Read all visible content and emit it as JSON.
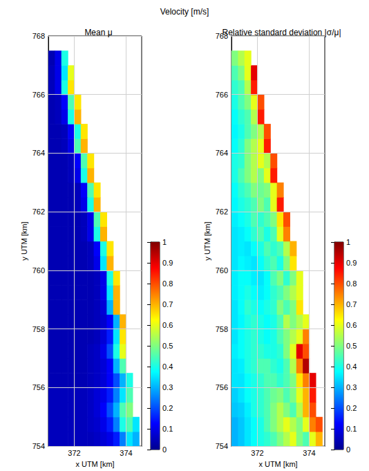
{
  "title": "Velocity [m/s]",
  "chart_data": [
    {
      "type": "heatmap",
      "title": "Mean μ",
      "x_label": "x UTM [km]",
      "y_label": "y UTM [km]",
      "xlim": [
        371,
        374.6
      ],
      "ylim": [
        754,
        768
      ],
      "xticks": [
        372,
        374
      ],
      "yticks": [
        754,
        756,
        758,
        760,
        762,
        764,
        766,
        768
      ],
      "grid": true,
      "color_range": [
        0,
        1
      ],
      "color_ticks": [
        0,
        0.1,
        0.2,
        0.3,
        0.4,
        0.5,
        0.6,
        0.7,
        0.8,
        0.9,
        1
      ],
      "x": [
        371.125,
        371.375,
        371.625,
        371.875,
        372.125,
        372.375,
        372.625,
        372.875,
        373.125,
        373.375,
        373.625,
        373.875,
        374.125,
        374.375
      ],
      "y": [
        754.25,
        754.75,
        755.25,
        755.75,
        756.25,
        756.75,
        757.25,
        757.75,
        758.25,
        758.75,
        759.25,
        759.75,
        760.25,
        760.75,
        761.25,
        761.75,
        762.25,
        762.75,
        763.25,
        763.75,
        764.25,
        764.75,
        765.25,
        765.75,
        766.25,
        766.75,
        767.25,
        767.75
      ],
      "values": [
        [
          0.05,
          0.05,
          0.05,
          0.05,
          0.05,
          0.05,
          0.05,
          0.06,
          0.08,
          0.1,
          0.15,
          0.25,
          0.35,
          0.3
        ],
        [
          0.05,
          0.05,
          0.05,
          0.05,
          0.05,
          0.05,
          0.06,
          0.07,
          0.1,
          0.15,
          0.25,
          0.4,
          0.45,
          0.35
        ],
        [
          0.05,
          0.05,
          0.05,
          0.05,
          0.05,
          0.05,
          0.06,
          0.08,
          0.12,
          0.2,
          0.3,
          0.45,
          0.5,
          null
        ],
        [
          0.05,
          0.05,
          0.05,
          0.05,
          0.05,
          0.05,
          0.06,
          0.08,
          0.1,
          0.15,
          0.25,
          0.35,
          0.45,
          null
        ],
        [
          0.04,
          0.04,
          0.04,
          0.04,
          0.04,
          0.04,
          0.05,
          0.06,
          0.08,
          0.12,
          0.2,
          0.3,
          0.4,
          null
        ],
        [
          0.04,
          0.04,
          0.04,
          0.04,
          0.04,
          0.04,
          0.05,
          0.06,
          0.08,
          0.12,
          0.3,
          0.45,
          null,
          null
        ],
        [
          0.04,
          0.04,
          0.04,
          0.04,
          0.04,
          0.04,
          0.05,
          0.06,
          0.1,
          0.2,
          0.4,
          0.6,
          null,
          null
        ],
        [
          0.04,
          0.04,
          0.04,
          0.04,
          0.04,
          0.04,
          0.04,
          0.05,
          0.08,
          0.15,
          0.35,
          0.65,
          null,
          null
        ],
        [
          0.04,
          0.04,
          0.04,
          0.04,
          0.04,
          0.04,
          0.04,
          0.05,
          0.07,
          0.12,
          0.3,
          0.7,
          null,
          null
        ],
        [
          0.04,
          0.04,
          0.04,
          0.04,
          0.04,
          0.04,
          0.04,
          0.05,
          0.08,
          0.3,
          0.7,
          null,
          null,
          null
        ],
        [
          0.04,
          0.04,
          0.04,
          0.04,
          0.04,
          0.04,
          0.04,
          0.05,
          0.1,
          0.35,
          0.7,
          null,
          null,
          null
        ],
        [
          0.04,
          0.04,
          0.04,
          0.04,
          0.04,
          0.04,
          0.04,
          0.05,
          0.1,
          0.4,
          0.65,
          null,
          null,
          null
        ],
        [
          0.04,
          0.04,
          0.04,
          0.04,
          0.04,
          0.04,
          0.05,
          0.1,
          0.35,
          0.7,
          null,
          null,
          null,
          null
        ],
        [
          0.04,
          0.04,
          0.04,
          0.04,
          0.04,
          0.04,
          0.05,
          0.12,
          0.4,
          0.65,
          null,
          null,
          null,
          null
        ],
        [
          0.04,
          0.04,
          0.04,
          0.04,
          0.04,
          0.05,
          0.1,
          0.4,
          0.7,
          null,
          null,
          null,
          null,
          null
        ],
        [
          0.04,
          0.04,
          0.04,
          0.04,
          0.04,
          0.05,
          0.1,
          0.45,
          0.65,
          null,
          null,
          null,
          null,
          null
        ],
        [
          0.04,
          0.04,
          0.04,
          0.04,
          0.05,
          0.1,
          0.4,
          0.7,
          null,
          null,
          null,
          null,
          null,
          null
        ],
        [
          0.04,
          0.04,
          0.04,
          0.04,
          0.05,
          0.12,
          0.45,
          0.65,
          null,
          null,
          null,
          null,
          null,
          null
        ],
        [
          0.04,
          0.04,
          0.04,
          0.05,
          0.1,
          0.4,
          0.7,
          null,
          null,
          null,
          null,
          null,
          null,
          null
        ],
        [
          0.04,
          0.04,
          0.04,
          0.05,
          0.12,
          0.45,
          0.65,
          null,
          null,
          null,
          null,
          null,
          null,
          null
        ],
        [
          0.04,
          0.04,
          0.05,
          0.1,
          0.45,
          0.7,
          null,
          null,
          null,
          null,
          null,
          null,
          null,
          null
        ],
        [
          0.04,
          0.04,
          0.05,
          0.12,
          0.4,
          0.65,
          null,
          null,
          null,
          null,
          null,
          null,
          null,
          null
        ],
        [
          0.04,
          0.05,
          0.1,
          0.4,
          0.7,
          null,
          null,
          null,
          null,
          null,
          null,
          null,
          null,
          null
        ],
        [
          0.04,
          0.05,
          0.12,
          0.45,
          0.65,
          null,
          null,
          null,
          null,
          null,
          null,
          null,
          null,
          null
        ],
        [
          0.05,
          0.1,
          0.4,
          0.65,
          null,
          null,
          null,
          null,
          null,
          null,
          null,
          null,
          null,
          null
        ],
        [
          0.05,
          0.1,
          0.35,
          0.6,
          null,
          null,
          null,
          null,
          null,
          null,
          null,
          null,
          null,
          null
        ],
        [
          0.04,
          0.1,
          0.4,
          null,
          null,
          null,
          null,
          null,
          null,
          null,
          null,
          null,
          null,
          null
        ],
        [
          null,
          null,
          null,
          null,
          null,
          null,
          null,
          null,
          null,
          null,
          null,
          null,
          null,
          null
        ]
      ]
    },
    {
      "type": "heatmap",
      "title": "Relative standard deviation |σ/μ|",
      "x_label": "x UTM [km]",
      "y_label": "y UTM [km]",
      "xlim": [
        371,
        374.6
      ],
      "ylim": [
        754,
        768
      ],
      "xticks": [
        372,
        374
      ],
      "yticks": [
        754,
        756,
        758,
        760,
        762,
        764,
        766,
        768
      ],
      "grid": true,
      "color_range": [
        0,
        1
      ],
      "color_ticks": [
        0,
        0.1,
        0.2,
        0.3,
        0.4,
        0.5,
        0.6,
        0.7,
        0.8,
        0.9,
        1
      ],
      "x": [
        371.125,
        371.375,
        371.625,
        371.875,
        372.125,
        372.375,
        372.625,
        372.875,
        373.125,
        373.375,
        373.625,
        373.875,
        374.125,
        374.375
      ],
      "y": [
        754.25,
        754.75,
        755.25,
        755.75,
        756.25,
        756.75,
        757.25,
        757.75,
        758.25,
        758.75,
        759.25,
        759.75,
        760.25,
        760.75,
        761.25,
        761.75,
        762.25,
        762.75,
        763.25,
        763.75,
        764.25,
        764.75,
        765.25,
        765.75,
        766.25,
        766.75,
        767.25,
        767.75
      ],
      "values": [
        [
          0.3,
          0.32,
          0.35,
          0.38,
          0.4,
          0.42,
          0.45,
          0.5,
          0.55,
          0.6,
          0.5,
          0.45,
          0.6,
          0.7
        ],
        [
          0.3,
          0.32,
          0.35,
          0.38,
          0.4,
          0.45,
          0.5,
          0.55,
          0.6,
          0.55,
          0.5,
          0.6,
          0.75,
          0.8
        ],
        [
          0.32,
          0.33,
          0.36,
          0.4,
          0.42,
          0.45,
          0.5,
          0.55,
          0.5,
          0.45,
          0.55,
          0.7,
          0.8,
          null
        ],
        [
          0.33,
          0.35,
          0.38,
          0.4,
          0.42,
          0.45,
          0.48,
          0.5,
          0.45,
          0.5,
          0.6,
          0.7,
          0.85,
          null
        ],
        [
          0.35,
          0.35,
          0.38,
          0.4,
          0.42,
          0.45,
          0.45,
          0.42,
          0.45,
          0.5,
          0.65,
          0.75,
          0.9,
          null
        ],
        [
          0.35,
          0.36,
          0.4,
          0.42,
          0.45,
          0.45,
          0.42,
          0.4,
          0.45,
          0.55,
          0.75,
          0.95,
          null,
          null
        ],
        [
          0.36,
          0.38,
          0.4,
          0.42,
          0.42,
          0.4,
          0.4,
          0.42,
          0.5,
          0.6,
          0.9,
          0.8,
          null,
          null
        ],
        [
          0.35,
          0.38,
          0.4,
          0.42,
          0.4,
          0.38,
          0.4,
          0.45,
          0.5,
          0.55,
          0.6,
          0.75,
          null,
          null
        ],
        [
          0.35,
          0.37,
          0.4,
          0.42,
          0.4,
          0.38,
          0.4,
          0.45,
          0.55,
          0.5,
          0.55,
          0.6,
          null,
          null
        ],
        [
          0.35,
          0.38,
          0.42,
          0.4,
          0.38,
          0.4,
          0.42,
          0.5,
          0.45,
          0.5,
          0.65,
          null,
          null,
          null
        ],
        [
          0.36,
          0.38,
          0.4,
          0.38,
          0.36,
          0.38,
          0.42,
          0.45,
          0.5,
          0.55,
          0.6,
          null,
          null,
          null
        ],
        [
          0.36,
          0.38,
          0.38,
          0.36,
          0.35,
          0.38,
          0.45,
          0.5,
          0.42,
          0.5,
          0.6,
          null,
          null,
          null
        ],
        [
          0.35,
          0.37,
          0.36,
          0.35,
          0.38,
          0.42,
          0.45,
          0.4,
          0.5,
          0.65,
          null,
          null,
          null,
          null
        ],
        [
          0.35,
          0.36,
          0.35,
          0.38,
          0.4,
          0.45,
          0.42,
          0.45,
          0.55,
          0.7,
          null,
          null,
          null,
          null
        ],
        [
          0.35,
          0.36,
          0.38,
          0.42,
          0.45,
          0.4,
          0.45,
          0.6,
          0.75,
          null,
          null,
          null,
          null,
          null
        ],
        [
          0.36,
          0.38,
          0.4,
          0.45,
          0.42,
          0.45,
          0.5,
          0.65,
          0.8,
          null,
          null,
          null,
          null,
          null
        ],
        [
          0.37,
          0.4,
          0.42,
          0.45,
          0.5,
          0.45,
          0.6,
          0.85,
          null,
          null,
          null,
          null,
          null,
          null
        ],
        [
          0.38,
          0.42,
          0.45,
          0.5,
          0.48,
          0.5,
          0.6,
          0.75,
          null,
          null,
          null,
          null,
          null,
          null
        ],
        [
          0.4,
          0.45,
          0.5,
          0.55,
          0.5,
          0.6,
          0.85,
          null,
          null,
          null,
          null,
          null,
          null,
          null
        ],
        [
          0.4,
          0.42,
          0.5,
          0.55,
          0.6,
          0.55,
          0.8,
          null,
          null,
          null,
          null,
          null,
          null,
          null
        ],
        [
          0.38,
          0.42,
          0.5,
          0.55,
          0.6,
          0.85,
          null,
          null,
          null,
          null,
          null,
          null,
          null,
          null
        ],
        [
          0.37,
          0.4,
          0.45,
          0.5,
          0.55,
          0.8,
          null,
          null,
          null,
          null,
          null,
          null,
          null,
          null
        ],
        [
          0.38,
          0.42,
          0.45,
          0.55,
          0.85,
          null,
          null,
          null,
          null,
          null,
          null,
          null,
          null,
          null
        ],
        [
          0.4,
          0.45,
          0.5,
          0.6,
          0.8,
          null,
          null,
          null,
          null,
          null,
          null,
          null,
          null,
          null
        ],
        [
          0.42,
          0.45,
          0.55,
          0.85,
          null,
          null,
          null,
          null,
          null,
          null,
          null,
          null,
          null,
          null
        ],
        [
          0.45,
          0.5,
          0.6,
          0.9,
          null,
          null,
          null,
          null,
          null,
          null,
          null,
          null,
          null,
          null
        ],
        [
          0.5,
          0.55,
          0.6,
          null,
          null,
          null,
          null,
          null,
          null,
          null,
          null,
          null,
          null,
          null
        ],
        [
          null,
          null,
          null,
          null,
          null,
          null,
          null,
          null,
          null,
          null,
          null,
          null,
          null,
          null
        ]
      ]
    }
  ]
}
